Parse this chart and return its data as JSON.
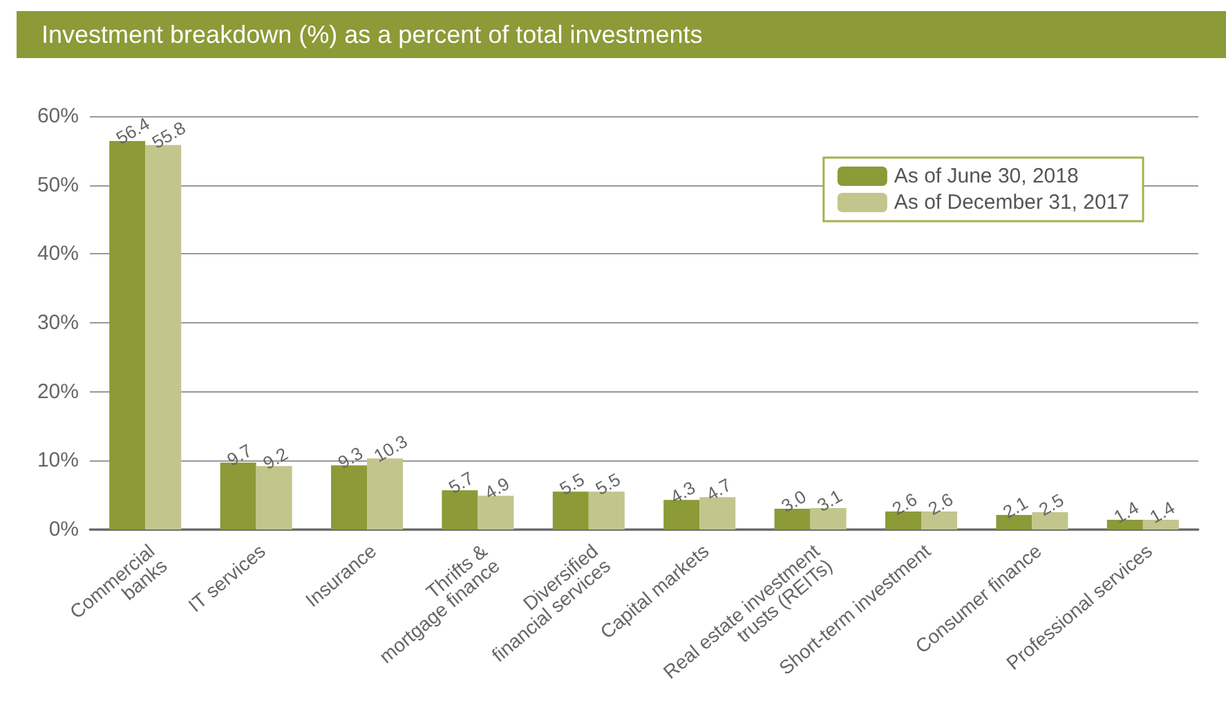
{
  "chart_data": {
    "type": "bar",
    "title": "Investment breakdown (%) as a percent of total investments",
    "categories": [
      "Commercial\nbanks",
      "IT services",
      "Insurance",
      "Thrifts &\nmortgage finance",
      "Diversified\nfinancial services",
      "Capital markets",
      "Real estate investment\ntrusts (REITs)",
      "Short-term investment",
      "Consumer finance",
      "Professional services"
    ],
    "series": [
      {
        "name": "As of June 30, 2018",
        "color": "#8c9a37",
        "values": [
          56.4,
          9.7,
          9.3,
          5.7,
          5.5,
          4.3,
          3.0,
          2.6,
          2.1,
          1.4
        ],
        "value_labels": [
          "56.4",
          "9.7",
          "9.3",
          "5.7",
          "5.5",
          "4.3",
          "3.0",
          "2.6",
          "2.1",
          "1.4"
        ]
      },
      {
        "name": "As of December 31, 2017",
        "color": "#c2c68c",
        "values": [
          55.8,
          9.2,
          10.3,
          4.9,
          5.5,
          4.7,
          3.1,
          2.6,
          2.5,
          1.4
        ],
        "value_labels": [
          "55.8",
          "9.2",
          "10.3",
          "4.9",
          "5.5",
          "4.7",
          "3.1",
          "2.6",
          "2.5",
          "1.4"
        ]
      }
    ],
    "ylim": [
      0,
      60
    ],
    "yticks": [
      {
        "value": 0,
        "label": "0%"
      },
      {
        "value": 10,
        "label": "10%"
      },
      {
        "value": 20,
        "label": "20%"
      },
      {
        "value": 30,
        "label": "30%"
      },
      {
        "value": 40,
        "label": "40%"
      },
      {
        "value": 50,
        "label": "50%"
      },
      {
        "value": 60,
        "label": "60%"
      }
    ],
    "grid": "y",
    "legend": "top right"
  }
}
